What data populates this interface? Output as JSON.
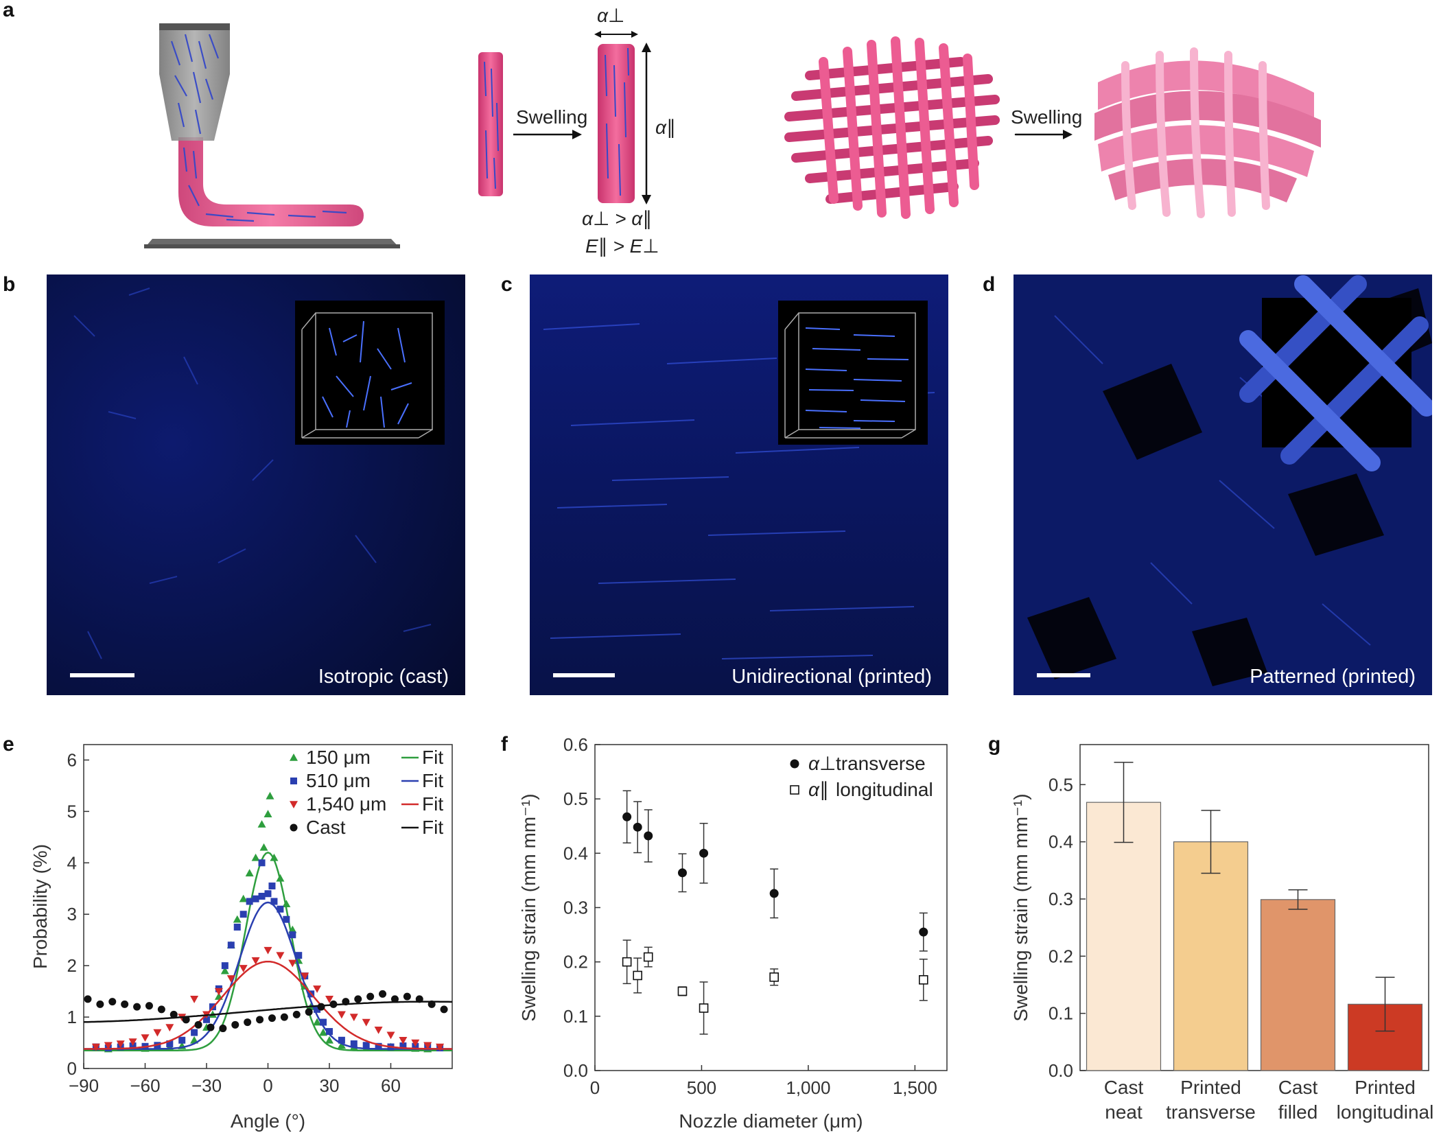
{
  "panels": {
    "a": {
      "label": "a",
      "swelling_1": "Swelling",
      "swelling_2": "Swelling",
      "alpha_perp": "α⊥",
      "alpha_par": "α∥",
      "relation_1": "α⊥ > α∥",
      "relation_2": "E∥ > E⊥",
      "colors": {
        "pink": "#e0457f",
        "pink_light": "#f07aa6",
        "fiber": "#3b4fd6",
        "substrate": "#7a7a7a"
      }
    },
    "b": {
      "label": "b",
      "caption": "Isotropic (cast)"
    },
    "c": {
      "label": "c",
      "caption": "Unidirectional (printed)"
    },
    "d": {
      "label": "d",
      "caption": "Patterned (printed)"
    },
    "e": {
      "label": "e"
    },
    "f": {
      "label": "f"
    },
    "g": {
      "label": "g"
    }
  },
  "chart_data": [
    {
      "id": "e",
      "type": "scatter",
      "xlabel": "Angle (°)",
      "ylabel": "Probability (%)",
      "xlim": [
        -90,
        90
      ],
      "ylim": [
        0,
        6.3
      ],
      "xticks": [
        "−90",
        "−60",
        "−30",
        "0",
        "30",
        "60"
      ],
      "xtick_values": [
        -90,
        -60,
        -30,
        0,
        30,
        60
      ],
      "yticks": [
        "0",
        "1",
        "2",
        "3",
        "4",
        "5",
        "6"
      ],
      "ytick_values": [
        0,
        1,
        2,
        3,
        4,
        5,
        6
      ],
      "legend_position": "top-right",
      "series": [
        {
          "name": "150 μm",
          "marker": "triangle-up",
          "color": "#2e9e3e",
          "fit_name": "Fit",
          "fit": {
            "amp": 3.85,
            "sigma": 11.0,
            "base": 0.35
          },
          "x": [
            -84,
            -78,
            -72,
            -66,
            -60,
            -54,
            -48,
            -42,
            -36,
            -30,
            -27,
            -24,
            -21,
            -18,
            -15,
            -12,
            -9,
            -6,
            -3,
            0,
            3,
            6,
            9,
            12,
            15,
            18,
            21,
            24,
            27,
            30,
            36,
            42,
            48,
            54,
            60,
            66,
            72,
            78,
            84,
            -2,
            1
          ],
          "y": [
            0.4,
            0.38,
            0.4,
            0.42,
            0.39,
            0.41,
            0.42,
            0.44,
            0.55,
            0.8,
            1.05,
            1.4,
            1.9,
            2.4,
            2.9,
            3.3,
            3.8,
            4.1,
            4.75,
            4.95,
            4.1,
            3.7,
            3.2,
            2.7,
            2.1,
            1.6,
            1.2,
            0.9,
            0.7,
            0.55,
            0.45,
            0.42,
            0.4,
            0.41,
            0.42,
            0.4,
            0.39,
            0.38,
            0.4,
            4.3,
            5.3
          ]
        },
        {
          "name": "510 μm",
          "marker": "square",
          "color": "#2a3fb0",
          "fit_name": "Fit",
          "fit": {
            "amp": 2.85,
            "sigma": 14.0,
            "base": 0.38
          },
          "x": [
            -84,
            -78,
            -72,
            -66,
            -60,
            -54,
            -48,
            -42,
            -36,
            -30,
            -27,
            -24,
            -21,
            -18,
            -15,
            -12,
            -9,
            -6,
            -3,
            0,
            3,
            6,
            9,
            12,
            15,
            18,
            21,
            24,
            27,
            30,
            36,
            42,
            48,
            54,
            60,
            66,
            72,
            78,
            84,
            -3,
            2
          ],
          "y": [
            0.42,
            0.4,
            0.42,
            0.44,
            0.43,
            0.45,
            0.48,
            0.55,
            0.7,
            0.95,
            1.2,
            1.55,
            2.0,
            2.4,
            2.75,
            3.0,
            3.25,
            3.3,
            3.35,
            3.4,
            3.25,
            3.1,
            2.9,
            2.6,
            2.2,
            1.8,
            1.45,
            1.15,
            0.9,
            0.72,
            0.55,
            0.48,
            0.45,
            0.43,
            0.42,
            0.44,
            0.43,
            0.42,
            0.4,
            4.0,
            3.55
          ]
        },
        {
          "name": "1,540 μm",
          "marker": "triangle-down",
          "color": "#d22a2a",
          "fit_name": "Fit",
          "fit": {
            "amp": 1.7,
            "sigma": 22.0,
            "base": 0.38
          },
          "x": [
            -84,
            -78,
            -72,
            -66,
            -60,
            -54,
            -48,
            -42,
            -36,
            -30,
            -24,
            -18,
            -12,
            -6,
            0,
            6,
            12,
            18,
            24,
            30,
            36,
            42,
            48,
            54,
            60,
            66,
            72,
            78,
            84
          ],
          "y": [
            0.42,
            0.45,
            0.48,
            0.52,
            0.6,
            0.7,
            0.8,
            1.0,
            1.35,
            1.05,
            1.5,
            1.75,
            1.95,
            2.1,
            2.3,
            2.2,
            2.05,
            1.8,
            1.55,
            1.35,
            1.05,
            1.0,
            0.9,
            0.75,
            0.65,
            0.55,
            0.5,
            0.45,
            0.42
          ]
        },
        {
          "name": "Cast",
          "marker": "circle",
          "color": "#111111",
          "fit_name": "Fit",
          "fit": {
            "type": "sine",
            "mean": 1.1,
            "amp": 0.2
          },
          "x": [
            -88,
            -82,
            -76,
            -70,
            -64,
            -58,
            -52,
            -46,
            -40,
            -34,
            -28,
            -22,
            -16,
            -10,
            -4,
            2,
            8,
            14,
            20,
            26,
            32,
            38,
            44,
            50,
            56,
            62,
            68,
            74,
            80,
            86
          ],
          "y": [
            1.35,
            1.25,
            1.3,
            1.25,
            1.2,
            1.22,
            1.15,
            1.05,
            0.95,
            0.85,
            0.8,
            0.78,
            0.85,
            0.9,
            0.95,
            0.98,
            1.0,
            1.05,
            1.1,
            1.2,
            1.25,
            1.3,
            1.35,
            1.4,
            1.45,
            1.35,
            1.4,
            1.35,
            1.25,
            1.15
          ]
        }
      ]
    },
    {
      "id": "f",
      "type": "scatter",
      "xlabel": "Nozzle diameter (μm)",
      "ylabel": "Swelling strain (mm mm⁻¹)",
      "xlim": [
        0,
        1650
      ],
      "ylim": [
        0,
        0.6
      ],
      "xticks": [
        "0",
        "500",
        "1,000",
        "1,500"
      ],
      "xtick_values": [
        0,
        500,
        1000,
        1500
      ],
      "yticks": [
        "0.0",
        "0.1",
        "0.2",
        "0.3",
        "0.4",
        "0.5",
        "0.6"
      ],
      "ytick_values": [
        0,
        0.1,
        0.2,
        0.3,
        0.4,
        0.5,
        0.6
      ],
      "legend_position": "top-right",
      "series": [
        {
          "name_symbol": "α⊥",
          "name_text": "transverse",
          "marker": "circle-filled",
          "color": "#111111",
          "x": [
            150,
            200,
            250,
            410,
            510,
            840,
            1540
          ],
          "y": [
            0.467,
            0.448,
            0.432,
            0.364,
            0.4,
            0.326,
            0.255
          ],
          "err": [
            0.048,
            0.047,
            0.048,
            0.035,
            0.055,
            0.045,
            0.035
          ]
        },
        {
          "name_symbol": "α∥",
          "name_text": "longitudinal",
          "marker": "square-open",
          "color": "#111111",
          "x": [
            150,
            200,
            250,
            410,
            510,
            840,
            1540
          ],
          "y": [
            0.2,
            0.175,
            0.209,
            0.146,
            0.115,
            0.172,
            0.167
          ],
          "err": [
            0.04,
            0.032,
            0.018,
            0.008,
            0.048,
            0.015,
            0.038
          ]
        }
      ]
    },
    {
      "id": "g",
      "type": "bar",
      "ylabel": "Swelling strain (mm mm⁻¹)",
      "ylim": [
        0,
        0.57
      ],
      "yticks": [
        "0.0",
        "0.1",
        "0.2",
        "0.3",
        "0.4",
        "0.5"
      ],
      "ytick_values": [
        0,
        0.1,
        0.2,
        0.3,
        0.4,
        0.5
      ],
      "categories": [
        [
          "Cast",
          "neat"
        ],
        [
          "Printed",
          "transverse"
        ],
        [
          "Cast",
          "filled"
        ],
        [
          "Printed",
          "longitudinal"
        ]
      ],
      "values": [
        0.469,
        0.4,
        0.299,
        0.116
      ],
      "errors": [
        0.07,
        0.055,
        0.017,
        0.047
      ],
      "colors": [
        "#fbe8d3",
        "#f4cd8f",
        "#e0956a",
        "#cc3a24"
      ]
    }
  ]
}
